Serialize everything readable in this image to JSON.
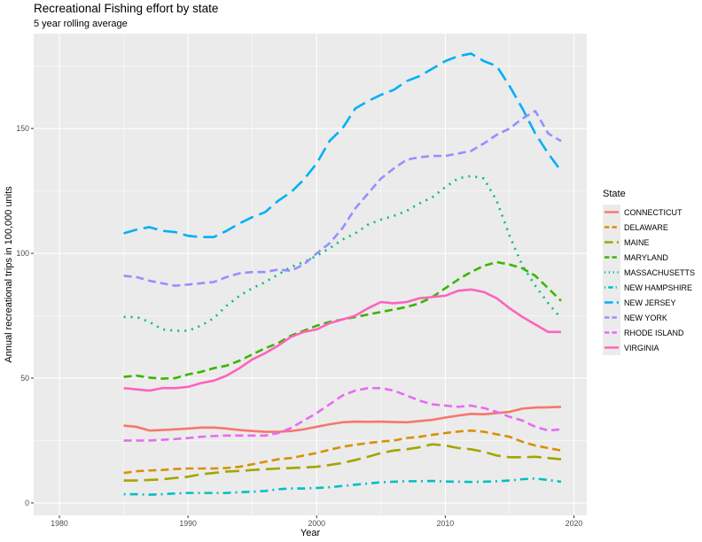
{
  "title": "Recreational Fishing effort by state",
  "subtitle": "5 year rolling average",
  "chart_data": {
    "type": "line",
    "title": "Recreational Fishing effort by state",
    "subtitle": "5 year rolling average",
    "xlabel": "Year",
    "ylabel": "Annual recreational trips in 100,000 units",
    "xlim": [
      1978,
      2021
    ],
    "ylim": [
      -5,
      188
    ],
    "x_ticks": [
      1980,
      1990,
      2000,
      2010,
      2020
    ],
    "y_ticks": [
      0,
      50,
      100,
      150
    ],
    "grid": true,
    "legend_title": "State",
    "legend_position": "right",
    "x": [
      1985,
      1986,
      1987,
      1988,
      1989,
      1990,
      1991,
      1992,
      1993,
      1994,
      1995,
      1996,
      1997,
      1998,
      1999,
      2000,
      2001,
      2002,
      2003,
      2004,
      2005,
      2006,
      2007,
      2008,
      2009,
      2010,
      2011,
      2012,
      2013,
      2014,
      2015,
      2016,
      2017,
      2018,
      2019
    ],
    "series": [
      {
        "name": "CONNECTICUT",
        "color": "#F8766D",
        "dash": "solid",
        "values": [
          31,
          30.5,
          29,
          29.2,
          29.5,
          29.8,
          30.2,
          30.2,
          29.8,
          29.2,
          28.8,
          28.5,
          28.5,
          28.8,
          29.5,
          30.5,
          31.5,
          32.3,
          32.6,
          32.5,
          32.6,
          32.4,
          32.3,
          32.8,
          33.3,
          34.2,
          35,
          35.7,
          35.5,
          36,
          36.5,
          37.8,
          38.2,
          38.3,
          38.5
        ]
      },
      {
        "name": "DELAWARE",
        "color": "#D89000",
        "dash": "dashed",
        "values": [
          12,
          12.7,
          13,
          13.2,
          13.6,
          13.8,
          13.8,
          13.8,
          14,
          14.5,
          15.5,
          16.5,
          17.5,
          18,
          19,
          20,
          21.3,
          22.5,
          23.3,
          24,
          24.6,
          25,
          26,
          26.5,
          27.3,
          28,
          28.6,
          29,
          28.5,
          27.5,
          26.5,
          24.5,
          23,
          22,
          21
        ]
      },
      {
        "name": "MAINE",
        "color": "#A3A500",
        "dash": "longdash",
        "values": [
          9,
          9,
          9.2,
          9.5,
          10,
          10.5,
          11.5,
          12,
          12.6,
          12.8,
          13.2,
          13.5,
          13.8,
          14,
          14.2,
          14.5,
          15.2,
          16,
          17.2,
          18.5,
          20,
          21,
          21.5,
          22.3,
          23.5,
          23,
          22,
          21.5,
          20.5,
          19,
          18.3,
          18.3,
          18.5,
          18,
          17.5
        ]
      },
      {
        "name": "MARYLAND",
        "color": "#39B600",
        "dash": "dashed",
        "values": [
          50.5,
          51,
          50.2,
          49.8,
          50,
          51.5,
          52.5,
          54,
          55,
          57,
          59.5,
          62,
          64,
          67,
          69,
          71,
          72.5,
          73.5,
          74.5,
          75.5,
          76.5,
          77.5,
          78.5,
          80,
          82.5,
          86,
          89.5,
          92.5,
          95,
          96.5,
          95.5,
          94,
          91,
          86,
          81
        ]
      },
      {
        "name": "MASSACHUSETTS",
        "color": "#00BF7D",
        "dash": "dotted",
        "values": [
          74.5,
          74.5,
          72.5,
          69.5,
          69,
          69,
          71,
          74,
          79,
          83,
          86,
          88.5,
          91.5,
          94.5,
          96.5,
          99,
          102,
          105.5,
          108,
          111.5,
          113.5,
          115,
          117,
          120,
          122.5,
          126.5,
          130,
          131,
          130,
          121,
          107,
          95,
          87,
          80,
          74
        ]
      },
      {
        "name": "NEW HAMPSHIRE",
        "color": "#00BFC4",
        "dash": "dotdash",
        "values": [
          3.5,
          3.5,
          3.3,
          3.5,
          3.8,
          4,
          4,
          4,
          4,
          4.3,
          4.5,
          4.8,
          5.5,
          5.8,
          5.8,
          6,
          6.3,
          6.8,
          7.3,
          7.8,
          8.3,
          8.5,
          8.7,
          8.7,
          8.8,
          8.6,
          8.5,
          8.4,
          8.5,
          8.7,
          9,
          9.5,
          9.8,
          9.2,
          8.5
        ]
      },
      {
        "name": "NEW JERSEY",
        "color": "#00B0F6",
        "dash": "longdash",
        "values": [
          108,
          109.5,
          110.5,
          109,
          108.5,
          107,
          106.5,
          106.5,
          109,
          112,
          114.5,
          116.5,
          121,
          124.5,
          129.5,
          136,
          145,
          150,
          158,
          161,
          163.5,
          165.5,
          169,
          171,
          174,
          177,
          179,
          180,
          177,
          175,
          167,
          158,
          148,
          140,
          133
        ]
      },
      {
        "name": "NEW YORK",
        "color": "#9590FF",
        "dash": "dashed",
        "values": [
          91,
          90.5,
          89,
          88,
          87,
          87.5,
          88,
          88.5,
          90.5,
          92,
          92.5,
          92.5,
          93.5,
          93,
          95.5,
          100,
          104,
          110,
          118,
          124,
          130,
          134,
          137.5,
          138.5,
          139,
          139,
          140,
          141,
          144,
          147.5,
          150,
          154,
          157,
          148,
          145
        ]
      },
      {
        "name": "RHODE ISLAND",
        "color": "#E76BF3",
        "dash": "dashed",
        "values": [
          25,
          25,
          25,
          25.3,
          25.6,
          26,
          26.5,
          26.8,
          27,
          27,
          27,
          27,
          28,
          30,
          33,
          36,
          39.5,
          43,
          45,
          46,
          46,
          45,
          43,
          41,
          39.5,
          39,
          38.5,
          39,
          38,
          36.5,
          34.5,
          33,
          30.5,
          29,
          29.5
        ]
      },
      {
        "name": "VIRGINIA",
        "color": "#FF62BC",
        "dash": "solid",
        "values": [
          46,
          45.5,
          45,
          46,
          46,
          46.5,
          48,
          49,
          51,
          54,
          57.5,
          60,
          63,
          66.5,
          68.5,
          69.5,
          72,
          73.5,
          75,
          78,
          80.5,
          80,
          80.5,
          82,
          82.5,
          83,
          85,
          85.5,
          84.5,
          82,
          78,
          74.5,
          71.5,
          68.5,
          68.5
        ]
      }
    ]
  }
}
